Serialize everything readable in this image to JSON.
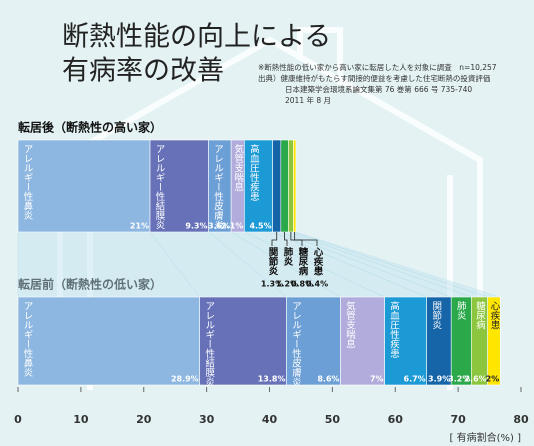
{
  "title_lines": [
    "断熱性能の向上による",
    "有病率の改善"
  ],
  "notes": [
    "※断熱性能の低い家から高い家に転居した人を対象に調査　n=10,257",
    "出典）健康維持がもたらす間接的便益を考慮した住宅断熱の投資評価",
    "日本建築学会環境系論文集第 76 巻第 666 号 735-740",
    "2011 年 8 月"
  ],
  "chart_data": {
    "type": "stacked_barh",
    "categories": [
      "転居後（断熱性の高い家）",
      "転居前（断熱性の低い家）"
    ],
    "series": [
      {
        "name": "アレルギー性鼻炎",
        "color": "#8db6e0",
        "values": [
          21,
          28.9
        ],
        "value_labels": [
          "21%",
          "28.9%"
        ]
      },
      {
        "name": "アレルギー性結膜炎",
        "color": "#6671b8",
        "values": [
          9.3,
          13.8
        ],
        "value_labels": [
          "9.3%",
          "13.8%"
        ]
      },
      {
        "name": "アレルギー性皮膚炎",
        "color": "#6c9fd6",
        "values": [
          3.6,
          8.6
        ],
        "value_labels": [
          "3.6%",
          "8.6%"
        ]
      },
      {
        "name": "気管支喘息",
        "color": "#b1acdb",
        "values": [
          2.1,
          7
        ],
        "value_labels": [
          "2.1%",
          "7%"
        ]
      },
      {
        "name": "高血圧性疾患",
        "color": "#1c9ad6",
        "values": [
          4.5,
          6.7
        ],
        "value_labels": [
          "4.5%",
          "6.7%"
        ]
      },
      {
        "name": "関節炎",
        "color": "#1565a8",
        "values": [
          1.3,
          3.9
        ],
        "value_labels": [
          "1.3%",
          "3.9%"
        ]
      },
      {
        "name": "肺炎",
        "color": "#2aa84a",
        "values": [
          1.2,
          3.2
        ],
        "value_labels": [
          "1.2%",
          "3.2%"
        ]
      },
      {
        "name": "糖尿病",
        "color": "#8cc63f",
        "values": [
          0.8,
          2.6
        ],
        "value_labels": [
          "0.8%",
          "2.6%"
        ]
      },
      {
        "name": "心疾患",
        "color": "#ffe600",
        "values": [
          0.4,
          2
        ],
        "value_labels": [
          "0.4%",
          "2%"
        ]
      }
    ],
    "xlim": [
      0,
      80
    ],
    "xticks": [
      0,
      10,
      20,
      30,
      40,
      50,
      60,
      70,
      80
    ],
    "xlabel": "[ 有病割合(%) ]"
  }
}
